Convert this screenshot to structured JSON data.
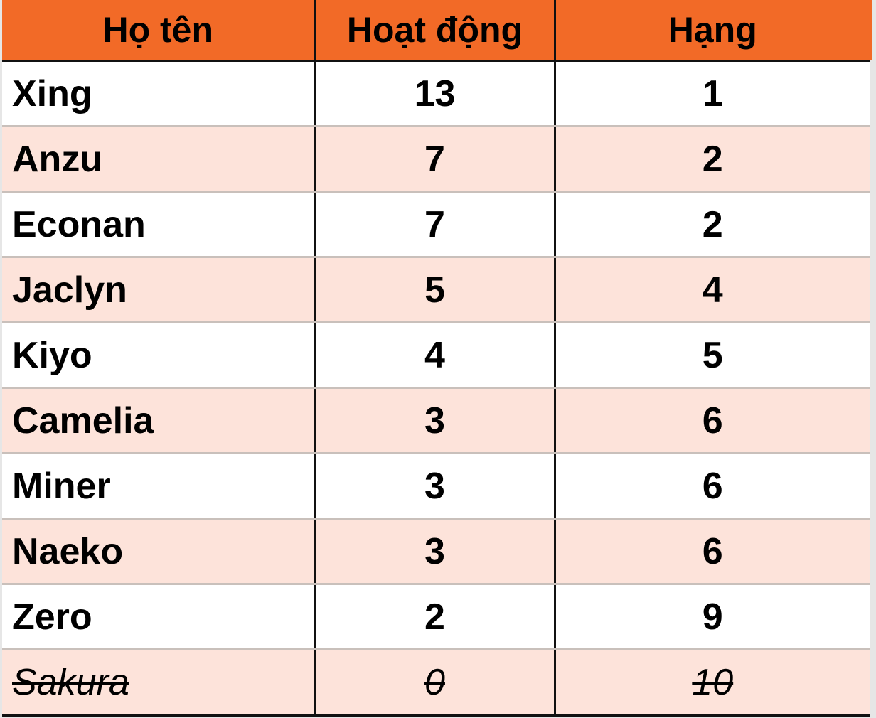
{
  "table": {
    "headers": [
      "Họ tên",
      "Hoạt động",
      "Hạng"
    ],
    "rows": [
      {
        "name": "Xing",
        "activity": "13",
        "rank": "1"
      },
      {
        "name": "Anzu",
        "activity": "7",
        "rank": "2"
      },
      {
        "name": "Econan",
        "activity": "7",
        "rank": "2"
      },
      {
        "name": "Jaclyn",
        "activity": "5",
        "rank": "4"
      },
      {
        "name": "Kiyo",
        "activity": "4",
        "rank": "5"
      },
      {
        "name": "Camelia",
        "activity": "3",
        "rank": "6"
      },
      {
        "name": "Miner",
        "activity": "3",
        "rank": "6"
      },
      {
        "name": "Naeko",
        "activity": "3",
        "rank": "6"
      },
      {
        "name": "Zero",
        "activity": "2",
        "rank": "9"
      },
      {
        "name": "Sakura",
        "activity": "0",
        "rank": "10",
        "struck": true
      }
    ]
  },
  "colors": {
    "header_bg": "#f26a27",
    "row_alt_bg": "#fde3da",
    "row_bg": "#ffffff",
    "text": "#000000"
  }
}
